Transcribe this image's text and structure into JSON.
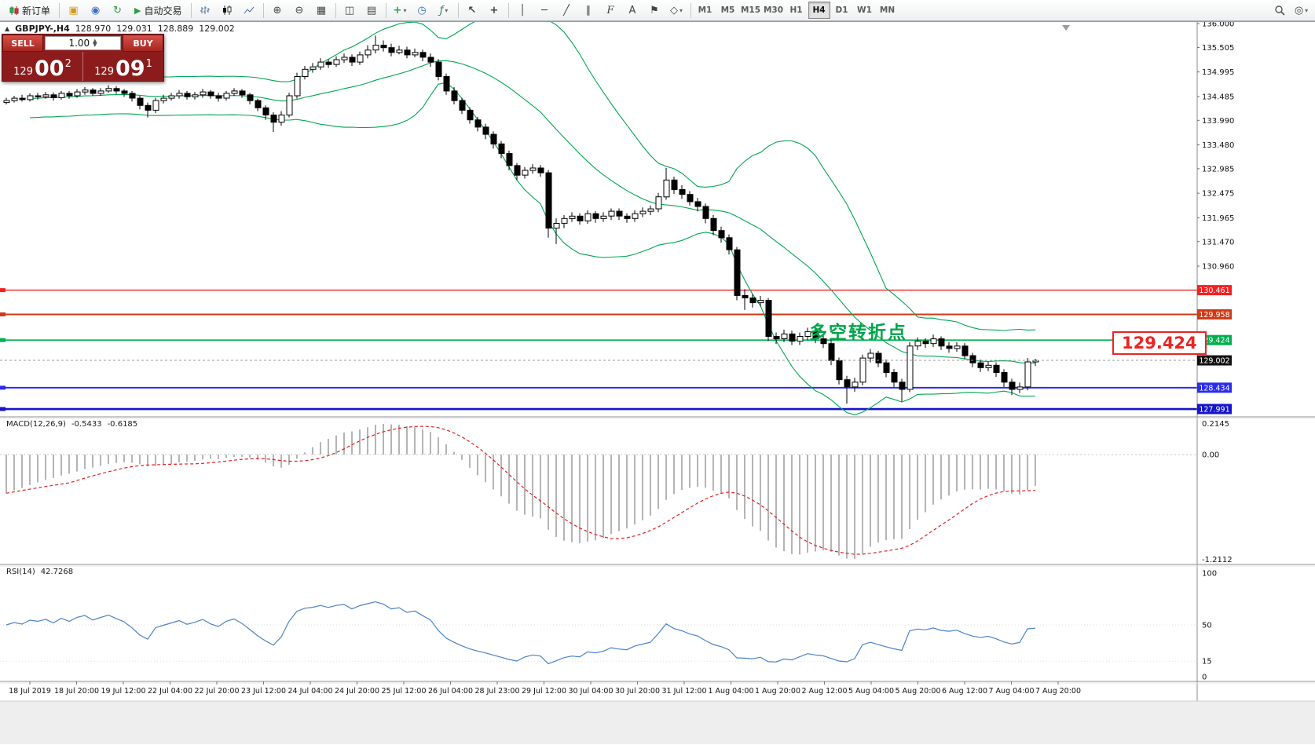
{
  "toolbar": {
    "new_order_label": "新订单",
    "autotrade_label": "自动交易",
    "timeframes": [
      "M1",
      "M5",
      "M15",
      "M30",
      "H1",
      "H4",
      "D1",
      "W1",
      "MN"
    ],
    "active_timeframe": "H4"
  },
  "symbol_bar": {
    "symbol_period": "GBPJPY-,H4",
    "open": "128.970",
    "high": "129.031",
    "low": "128.889",
    "close": "129.002"
  },
  "one_click": {
    "sell_label": "SELL",
    "buy_label": "BUY",
    "volume": "1.00",
    "sell_prefix": "129",
    "sell_big": "00",
    "sell_sup": "2",
    "buy_prefix": "129",
    "buy_big": "09",
    "buy_sup": "1"
  },
  "price_axis": {
    "ticks": [
      "136.000",
      "135.505",
      "134.995",
      "134.485",
      "133.990",
      "133.480",
      "132.985",
      "132.475",
      "131.965",
      "131.470",
      "130.960"
    ]
  },
  "levels": [
    {
      "price": 130.461,
      "label": "130.461",
      "color": "#f52020",
      "width": 1.4
    },
    {
      "price": 129.958,
      "label": "129.958",
      "color": "#cf3a16",
      "width": 2
    },
    {
      "price": 129.424,
      "label": "129.424",
      "color": "#00b050",
      "width": 1.6
    },
    {
      "price": 128.434,
      "label": "128.434",
      "color": "#2b2bf0",
      "width": 2
    },
    {
      "price": 127.991,
      "label": "127.991",
      "color": "#1414cc",
      "width": 2.6
    }
  ],
  "current_price": {
    "price": 129.002,
    "label": "129.002",
    "tag_bg": "#111111"
  },
  "annotation": {
    "text": "多空转折点",
    "color": "#00a44a"
  },
  "callout": {
    "text": "129.424",
    "color": "#ee2222"
  },
  "macd": {
    "name": "MACD(12,26,9)",
    "main_value": "-0.5433",
    "signal_value": "-0.6185",
    "axis_max": "0.2145",
    "axis_zero": "0.00",
    "axis_min": "-1.2112",
    "fast": 12,
    "slow": 26,
    "signal": 9,
    "histogram_color": "#b4b4b4",
    "signal_color": "#e02020"
  },
  "rsi": {
    "name": "RSI(14)",
    "value": "42.7268",
    "period": 14,
    "line_color": "#4a82c8",
    "axis": [
      {
        "v": 100,
        "label": "100"
      },
      {
        "v": 50,
        "label": "50"
      },
      {
        "v": 15,
        "label": "15"
      },
      {
        "v": 0,
        "label": "0"
      }
    ]
  },
  "time_axis": {
    "labels": [
      "18 Jul 2019",
      "18 Jul 20:00",
      "19 Jul 12:00",
      "22 Jul 04:00",
      "22 Jul 20:00",
      "23 Jul 12:00",
      "24 Jul 04:00",
      "24 Jul 20:00",
      "25 Jul 12:00",
      "26 Jul 04:00",
      "28 Jul 23:00",
      "29 Jul 12:00",
      "30 Jul 04:00",
      "30 Jul 20:00",
      "31 Jul 12:00",
      "1 Aug 04:00",
      "1 Aug 20:00",
      "2 Aug 12:00",
      "5 Aug 04:00",
      "5 Aug 20:00",
      "6 Aug 12:00",
      "7 Aug 04:00",
      "7 Aug 20:00"
    ]
  },
  "chart_data": {
    "type": "candlestick",
    "symbol": "GBPJPY-",
    "timeframe": "H4",
    "ylim": [
      127.87,
      136.05
    ],
    "grid": false,
    "overlays": [
      {
        "type": "bollinger",
        "period": 20,
        "deviation": 2,
        "color": "#00a651"
      }
    ],
    "indicators": [
      {
        "type": "MACD",
        "params": [
          12,
          26,
          9
        ]
      },
      {
        "type": "RSI",
        "params": [
          14
        ]
      }
    ],
    "ohlc": [
      [
        134.36,
        134.46,
        134.32,
        134.4
      ],
      [
        134.4,
        134.5,
        134.36,
        134.45
      ],
      [
        134.45,
        134.52,
        134.38,
        134.42
      ],
      [
        134.42,
        134.55,
        134.38,
        134.5
      ],
      [
        134.5,
        134.56,
        134.42,
        134.48
      ],
      [
        134.48,
        134.58,
        134.44,
        134.52
      ],
      [
        134.52,
        134.57,
        134.4,
        134.46
      ],
      [
        134.46,
        134.6,
        134.42,
        134.55
      ],
      [
        134.55,
        134.6,
        134.44,
        134.5
      ],
      [
        134.5,
        134.64,
        134.46,
        134.58
      ],
      [
        134.58,
        134.68,
        134.52,
        134.62
      ],
      [
        134.62,
        134.66,
        134.5,
        134.55
      ],
      [
        134.55,
        134.66,
        134.5,
        134.6
      ],
      [
        134.6,
        134.72,
        134.56,
        134.65
      ],
      [
        134.65,
        134.7,
        134.54,
        134.6
      ],
      [
        134.6,
        134.64,
        134.48,
        134.55
      ],
      [
        134.55,
        134.6,
        134.38,
        134.45
      ],
      [
        134.45,
        134.5,
        134.22,
        134.3
      ],
      [
        134.3,
        134.36,
        134.05,
        134.2
      ],
      [
        134.2,
        134.46,
        134.14,
        134.4
      ],
      [
        134.4,
        134.52,
        134.34,
        134.45
      ],
      [
        134.45,
        134.56,
        134.4,
        134.5
      ],
      [
        134.5,
        134.62,
        134.44,
        134.55
      ],
      [
        134.55,
        134.6,
        134.42,
        134.48
      ],
      [
        134.48,
        134.58,
        134.42,
        134.52
      ],
      [
        134.52,
        134.64,
        134.46,
        134.58
      ],
      [
        134.58,
        134.62,
        134.44,
        134.5
      ],
      [
        134.5,
        134.56,
        134.38,
        134.45
      ],
      [
        134.45,
        134.6,
        134.4,
        134.55
      ],
      [
        134.55,
        134.66,
        134.5,
        134.6
      ],
      [
        134.6,
        134.64,
        134.46,
        134.52
      ],
      [
        134.52,
        134.56,
        134.32,
        134.4
      ],
      [
        134.4,
        134.44,
        134.18,
        134.25
      ],
      [
        134.25,
        134.3,
        134.0,
        134.1
      ],
      [
        134.1,
        134.16,
        133.75,
        133.95
      ],
      [
        133.95,
        134.18,
        133.88,
        134.1
      ],
      [
        134.1,
        134.56,
        134.05,
        134.5
      ],
      [
        134.5,
        134.98,
        134.44,
        134.9
      ],
      [
        134.9,
        135.12,
        134.84,
        135.05
      ],
      [
        135.05,
        135.18,
        134.98,
        135.1
      ],
      [
        135.1,
        135.28,
        135.04,
        135.2
      ],
      [
        135.2,
        135.26,
        135.08,
        135.15
      ],
      [
        135.15,
        135.32,
        135.1,
        135.25
      ],
      [
        135.25,
        135.38,
        135.18,
        135.3
      ],
      [
        135.3,
        135.36,
        135.12,
        135.2
      ],
      [
        135.2,
        135.42,
        135.14,
        135.35
      ],
      [
        135.35,
        135.55,
        135.28,
        135.45
      ],
      [
        135.45,
        135.75,
        135.38,
        135.55
      ],
      [
        135.55,
        135.65,
        135.42,
        135.5
      ],
      [
        135.5,
        135.58,
        135.32,
        135.4
      ],
      [
        135.4,
        135.54,
        135.36,
        135.45
      ],
      [
        135.45,
        135.52,
        135.28,
        135.35
      ],
      [
        135.35,
        135.48,
        135.3,
        135.4
      ],
      [
        135.4,
        135.46,
        135.22,
        135.3
      ],
      [
        135.3,
        135.38,
        135.1,
        135.2
      ],
      [
        135.2,
        135.26,
        134.82,
        134.9
      ],
      [
        134.9,
        134.96,
        134.52,
        134.6
      ],
      [
        134.6,
        134.68,
        134.32,
        134.4
      ],
      [
        134.4,
        134.46,
        134.12,
        134.2
      ],
      [
        134.2,
        134.26,
        133.92,
        134.0
      ],
      [
        134.0,
        134.06,
        133.76,
        133.85
      ],
      [
        133.85,
        133.92,
        133.6,
        133.7
      ],
      [
        133.7,
        133.76,
        133.4,
        133.5
      ],
      [
        133.5,
        133.56,
        133.2,
        133.3
      ],
      [
        133.3,
        133.36,
        132.95,
        133.05
      ],
      [
        133.05,
        133.1,
        132.75,
        132.85
      ],
      [
        132.85,
        133.02,
        132.78,
        132.95
      ],
      [
        132.95,
        133.08,
        132.88,
        133.0
      ],
      [
        133.0,
        133.06,
        132.82,
        132.9
      ],
      [
        132.9,
        132.96,
        131.55,
        131.75
      ],
      [
        131.75,
        131.95,
        131.42,
        131.85
      ],
      [
        131.85,
        132.02,
        131.75,
        131.95
      ],
      [
        131.95,
        132.08,
        131.88,
        132.0
      ],
      [
        132.0,
        132.06,
        131.82,
        131.9
      ],
      [
        131.9,
        132.12,
        131.84,
        132.05
      ],
      [
        132.05,
        132.1,
        131.86,
        131.95
      ],
      [
        131.95,
        132.08,
        131.88,
        132.0
      ],
      [
        132.0,
        132.16,
        131.92,
        132.1
      ],
      [
        132.1,
        132.16,
        131.92,
        132.0
      ],
      [
        132.0,
        132.06,
        131.86,
        131.95
      ],
      [
        131.95,
        132.12,
        131.88,
        132.05
      ],
      [
        132.05,
        132.18,
        131.98,
        132.1
      ],
      [
        132.1,
        132.22,
        132.02,
        132.15
      ],
      [
        132.15,
        132.48,
        132.08,
        132.4
      ],
      [
        132.4,
        133.0,
        132.34,
        132.75
      ],
      [
        132.75,
        132.82,
        132.46,
        132.55
      ],
      [
        132.55,
        132.64,
        132.36,
        132.45
      ],
      [
        132.45,
        132.52,
        132.22,
        132.3
      ],
      [
        132.3,
        132.38,
        132.1,
        132.2
      ],
      [
        132.2,
        132.26,
        131.85,
        131.95
      ],
      [
        131.95,
        132.02,
        131.6,
        131.7
      ],
      [
        131.7,
        131.78,
        131.45,
        131.55
      ],
      [
        131.55,
        131.62,
        131.2,
        131.3
      ],
      [
        131.3,
        131.36,
        130.25,
        130.35
      ],
      [
        130.35,
        130.48,
        130.05,
        130.3
      ],
      [
        130.3,
        130.38,
        130.1,
        130.2
      ],
      [
        130.2,
        130.34,
        130.12,
        130.25
      ],
      [
        130.25,
        130.3,
        129.4,
        129.5
      ],
      [
        129.5,
        129.58,
        129.34,
        129.45
      ],
      [
        129.45,
        129.64,
        129.38,
        129.55
      ],
      [
        129.55,
        129.62,
        129.32,
        129.4
      ],
      [
        129.4,
        129.58,
        129.32,
        129.5
      ],
      [
        129.5,
        129.68,
        129.42,
        129.6
      ],
      [
        129.6,
        129.66,
        129.36,
        129.45
      ],
      [
        129.45,
        129.52,
        129.26,
        129.35
      ],
      [
        129.35,
        129.42,
        128.9,
        129.0
      ],
      [
        129.0,
        129.06,
        128.5,
        128.6
      ],
      [
        128.6,
        128.68,
        128.1,
        128.45
      ],
      [
        128.45,
        128.64,
        128.35,
        128.55
      ],
      [
        128.55,
        129.12,
        128.48,
        129.05
      ],
      [
        129.05,
        129.24,
        128.96,
        129.15
      ],
      [
        129.15,
        129.2,
        128.86,
        128.95
      ],
      [
        128.95,
        129.02,
        128.65,
        128.75
      ],
      [
        128.75,
        128.82,
        128.45,
        128.55
      ],
      [
        128.55,
        128.62,
        128.15,
        128.4
      ],
      [
        128.4,
        129.38,
        128.34,
        129.3
      ],
      [
        129.3,
        129.48,
        129.22,
        129.4
      ],
      [
        129.4,
        129.46,
        129.26,
        129.35
      ],
      [
        129.35,
        129.54,
        129.28,
        129.45
      ],
      [
        129.45,
        129.5,
        129.22,
        129.3
      ],
      [
        129.3,
        129.38,
        129.16,
        129.25
      ],
      [
        129.25,
        129.38,
        129.18,
        129.3
      ],
      [
        129.3,
        129.36,
        129.02,
        129.1
      ],
      [
        129.1,
        129.16,
        128.86,
        128.95
      ],
      [
        128.95,
        129.02,
        128.76,
        128.85
      ],
      [
        128.85,
        128.98,
        128.78,
        128.9
      ],
      [
        128.9,
        128.96,
        128.66,
        128.75
      ],
      [
        128.75,
        128.82,
        128.45,
        128.55
      ],
      [
        128.55,
        128.62,
        128.28,
        128.4
      ],
      [
        128.4,
        128.54,
        128.32,
        128.45
      ],
      [
        128.45,
        129.05,
        128.38,
        128.97
      ],
      [
        128.97,
        129.031,
        128.889,
        129.002
      ]
    ]
  }
}
